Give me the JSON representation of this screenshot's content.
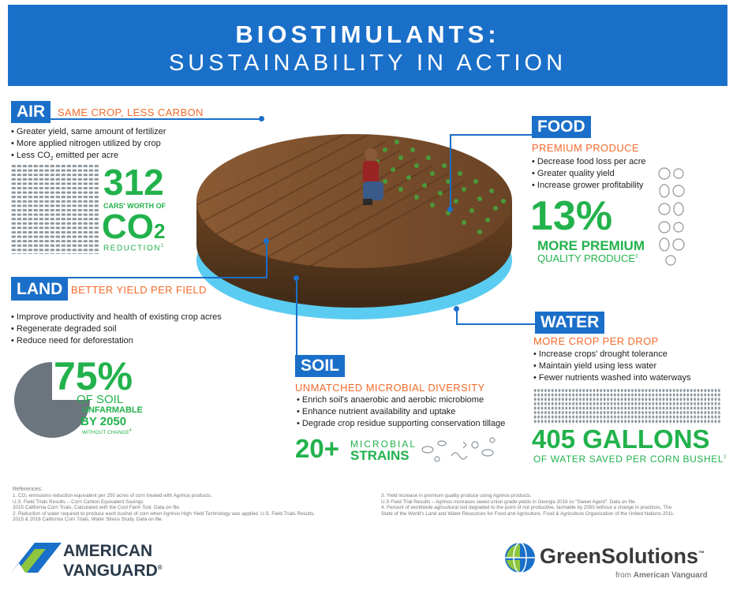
{
  "header": {
    "title_line1": "BIOSTIMULANTS:",
    "title_line2": "SUSTAINABILITY IN ACTION"
  },
  "air": {
    "tag": "AIR",
    "subhead": "SAME CROP, LESS CARBON",
    "bullets": [
      "Greater yield, same amount of fertilizer",
      "More applied nitrogen utilized by crop"
    ],
    "bullet3_pre": "Less CO",
    "bullet3_sub": "2",
    "bullet3_post": " emitted per acre",
    "stat_number": "312",
    "stat_label1": "CARS' WORTH OF",
    "stat_co": "CO",
    "stat_co_sub": "2",
    "stat_label2": "REDUCTION",
    "stat_ref": "1"
  },
  "land": {
    "tag": "LAND",
    "subhead": "BETTER YIELD PER FIELD",
    "bullets": [
      "Improve productivity and health of existing crop acres",
      "Regenerate degraded soil",
      "Reduce need for deforestation"
    ],
    "stat_number": "75%",
    "stat_label1": "OF SOIL",
    "stat_label2": "UNFARMABLE",
    "stat_label3": "BY 2050",
    "stat_label4": "WITHOUT CHANGE",
    "stat_ref": "4",
    "pie_fraction": 0.75
  },
  "food": {
    "tag": "FOOD",
    "subhead": "PREMIUM PRODUCE",
    "bullets": [
      "Decrease food loss per acre",
      "Greater quality yield",
      "Increase grower profitability"
    ],
    "stat_number": "13%",
    "stat_label1": "MORE PREMIUM",
    "stat_label2": "QUALITY PRODUCE",
    "stat_ref": "3"
  },
  "water": {
    "tag": "WATER",
    "subhead": "MORE CROP PER DROP",
    "bullets": [
      "Increase crops' drought tolerance",
      "Maintain yield using less water",
      "Fewer nutrients washed into waterways"
    ],
    "stat_number": "405 GALLONS",
    "stat_label": "OF WATER SAVED PER CORN BUSHEL",
    "stat_ref": "2"
  },
  "soil": {
    "tag": "SOIL",
    "subhead": "UNMATCHED MICROBIAL DIVERSITY",
    "bullets": [
      "Enrich soil's anaerobic and aerobic microbiome",
      "Enhance nutrient availability and uptake",
      "Degrade crop residue supporting conservation tillage"
    ],
    "stat_number": "20+",
    "stat_label1": "MICROBIAL",
    "stat_label2": "STRAINS"
  },
  "references": {
    "title": "References:",
    "left": [
      "1. CO₂ emissions reduction equivalent per 250 acres of corn treated with Agrinos products.",
      "    U.S. Field Trials Results – Corn Carbon Equivalent Savings",
      "    2015 California Corn Trials. Calculated with the Cool Farm Tool. Data on file.",
      "2. Reduction of water required to produce each bushel of corn when Agrinos High Yield Technology was applied. U.S. Field Trials Results.",
      "    2015 & 2016 California Corn Trials, Water Stress Study. Data on file."
    ],
    "right": [
      "3. Yield increase in premium quality produce using Agrinos products.",
      "    U.S Field Trial Results – Agrinos increases sweet onion grade yields in Georgia 2016 cv \"Sweet Agent\". Data on file.",
      "4. Percent of worldwide agricultural soil degraded to the point of not productive, farmable by 2050 without a change in practices. The",
      "    State of the World's Land and Water Resources for Food and Agriculture, Food & Agriculture Organization of the United Nations 2011."
    ]
  },
  "logos": {
    "av_line1": "AMERICAN",
    "av_line2": "VANGUARD",
    "av_reg": "®",
    "gs_name": "GreenSolutions",
    "gs_tm": "™",
    "gs_from": "from",
    "gs_from_brand": "American Vanguard"
  },
  "colors": {
    "blue": "#1a6fc9",
    "green": "#22b24c",
    "orange": "#f26b2a",
    "grey": "#6c757d"
  }
}
